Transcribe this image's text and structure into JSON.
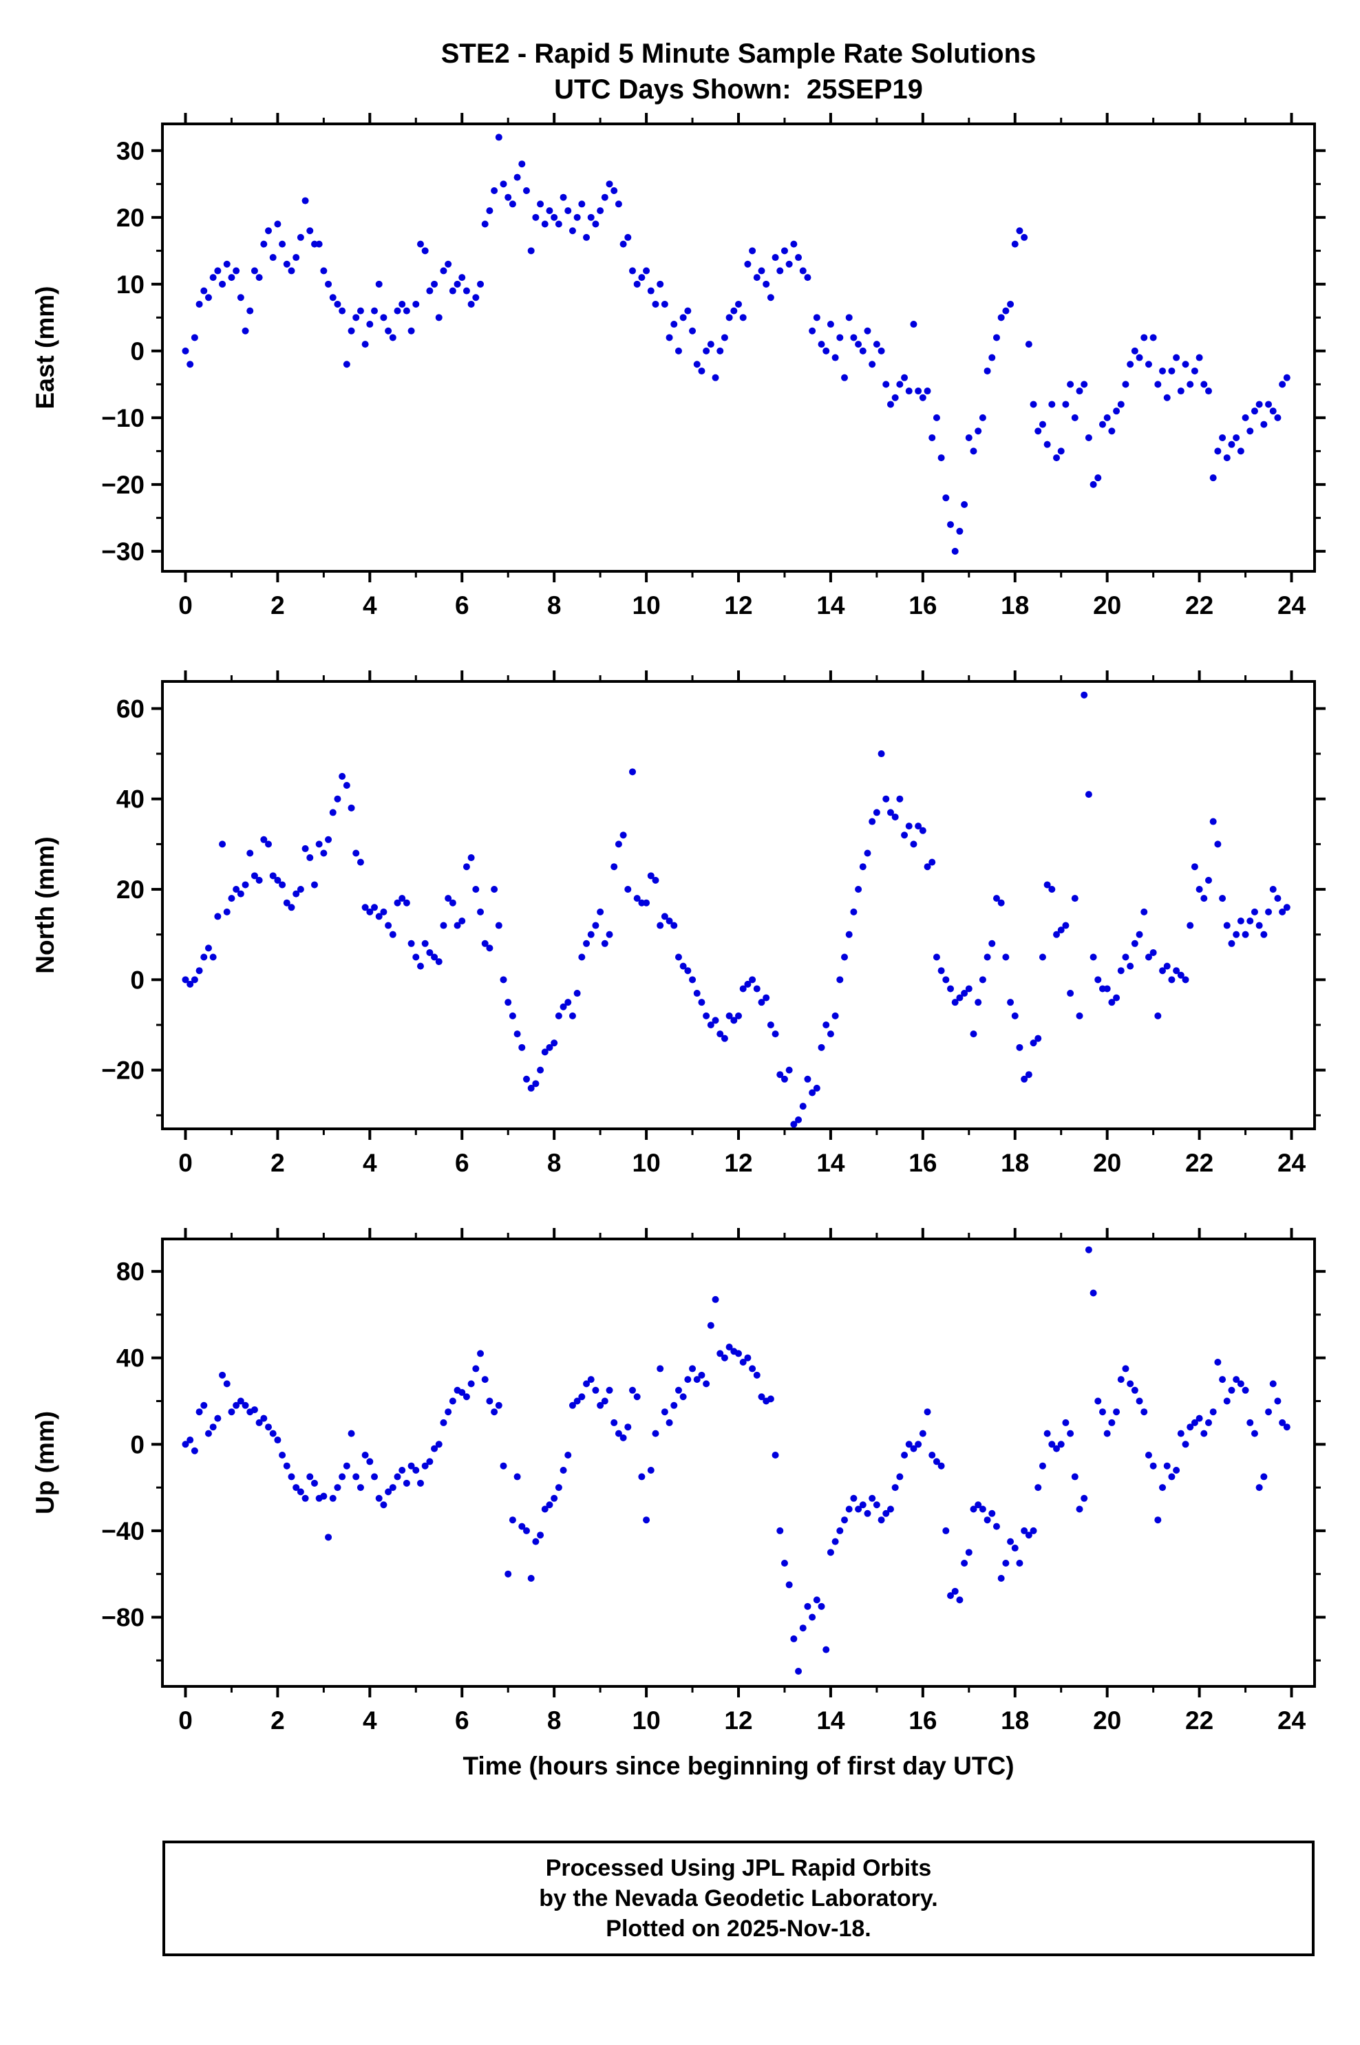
{
  "title_line1": "STE2 - Rapid 5 Minute Sample Rate Solutions",
  "title_line2": "UTC Days Shown:  25SEP19",
  "xlabel": "Time (hours since beginning of first day UTC)",
  "footer": {
    "line1": "Processed Using JPL Rapid Orbits",
    "line2": "by the Nevada Geodetic Laboratory.",
    "line3": "Plotted on 2025-Nov-18."
  },
  "point_color": "#0000dd",
  "chart_data": [
    {
      "type": "scatter",
      "name": "East",
      "ylabel": "East (mm)",
      "x_start": 0,
      "x_step": 0.1,
      "xlim": [
        -0.5,
        24.5
      ],
      "ylim": [
        -33,
        34
      ],
      "xticks": [
        0,
        2,
        4,
        6,
        8,
        10,
        12,
        14,
        16,
        18,
        20,
        22,
        24
      ],
      "yticks": [
        -30,
        -20,
        -10,
        0,
        10,
        20,
        30
      ],
      "x_minor_step": 1,
      "y_minor_step": 5,
      "values": [
        0,
        -2,
        2,
        7,
        9,
        8,
        11,
        12,
        10,
        13,
        11,
        12,
        8,
        3,
        6,
        12,
        11,
        16,
        18,
        14,
        19,
        16,
        13,
        12,
        14,
        17,
        22.5,
        18,
        16,
        16,
        12,
        10,
        8,
        7,
        6,
        -2,
        3,
        5,
        6,
        1,
        4,
        6,
        10,
        5,
        3,
        2,
        6,
        7,
        6,
        3,
        7,
        16,
        15,
        9,
        10,
        5,
        12,
        13,
        9,
        10,
        11,
        9,
        7,
        8,
        10,
        19,
        21,
        24,
        32,
        25,
        23,
        22,
        26,
        28,
        24,
        15,
        20,
        22,
        19,
        21,
        20,
        19,
        23,
        21,
        18,
        20,
        22,
        17,
        20,
        19,
        21,
        23,
        25,
        24,
        22,
        16,
        17,
        12,
        10,
        11,
        12,
        9,
        7,
        10,
        7,
        2,
        4,
        0,
        5,
        6,
        3,
        -2,
        -3,
        0,
        1,
        -4,
        0,
        2,
        5,
        6,
        7,
        5,
        13,
        15,
        11,
        12,
        10,
        8,
        14,
        12,
        15,
        13,
        16,
        14,
        12,
        11,
        3,
        5,
        1,
        0,
        4,
        -1,
        2,
        -4,
        5,
        2,
        1,
        0,
        3,
        -2,
        1,
        0,
        -5,
        -8,
        -7,
        -5,
        -4,
        -6,
        4,
        -6,
        -7,
        -6,
        -13,
        -10,
        -16,
        -22,
        -26,
        -30,
        -27,
        -23,
        -13,
        -15,
        -12,
        -10,
        -3,
        -1,
        2,
        5,
        6,
        7,
        16,
        18,
        17,
        1,
        -8,
        -12,
        -11,
        -14,
        -8,
        -16,
        -15,
        -8,
        -5,
        -10,
        -6,
        -5,
        -13,
        -20,
        -19,
        -11,
        -10,
        -12,
        -9,
        -8,
        -5,
        -2,
        0,
        -1,
        2,
        -2,
        2,
        -5,
        -3,
        -7,
        -3,
        -1,
        -6,
        -2,
        -5,
        -3,
        -1,
        -5,
        -6,
        -19,
        -15,
        -13,
        -16,
        -14,
        -13,
        -15,
        -10,
        -12,
        -9,
        -8,
        -11,
        -8,
        -9,
        -10,
        -5,
        -4
      ]
    },
    {
      "type": "scatter",
      "name": "North",
      "ylabel": "North (mm)",
      "x_start": 0,
      "x_step": 0.1,
      "xlim": [
        -0.5,
        24.5
      ],
      "ylim": [
        -33,
        66
      ],
      "xticks": [
        0,
        2,
        4,
        6,
        8,
        10,
        12,
        14,
        16,
        18,
        20,
        22,
        24
      ],
      "yticks": [
        -20,
        0,
        20,
        40,
        60
      ],
      "x_minor_step": 1,
      "y_minor_step": 10,
      "values": [
        0,
        -1,
        0,
        2,
        5,
        7,
        5,
        14,
        30,
        15,
        18,
        20,
        19,
        21,
        28,
        23,
        22,
        31,
        30,
        23,
        22,
        21,
        17,
        16,
        19,
        20,
        29,
        27,
        21,
        30,
        28,
        31,
        37,
        40,
        45,
        43,
        38,
        28,
        26,
        16,
        15,
        16,
        14,
        15,
        12,
        10,
        17,
        18,
        17,
        8,
        5,
        3,
        8,
        6,
        5,
        4,
        12,
        18,
        17,
        12,
        13,
        25,
        27,
        20,
        15,
        8,
        7,
        20,
        12,
        0,
        -5,
        -8,
        -12,
        -15,
        -22,
        -24,
        -23,
        -20,
        -16,
        -15,
        -14,
        -8,
        -6,
        -5,
        -8,
        -3,
        5,
        8,
        10,
        12,
        15,
        8,
        10,
        25,
        30,
        32,
        20,
        46,
        18,
        17,
        17,
        23,
        22,
        12,
        14,
        13,
        12,
        5,
        3,
        2,
        0,
        -3,
        -5,
        -8,
        -10,
        -9,
        -12,
        -13,
        -8,
        -9,
        -8,
        -2,
        -1,
        0,
        -2,
        -5,
        -4,
        -10,
        -12,
        -21,
        -22,
        -20,
        -32,
        -31,
        -28,
        -22,
        -25,
        -24,
        -15,
        -10,
        -12,
        -8,
        0,
        5,
        10,
        15,
        20,
        25,
        28,
        35,
        37,
        50,
        40,
        37,
        36,
        40,
        32,
        34,
        30,
        34,
        33,
        25,
        26,
        5,
        2,
        0,
        -2,
        -5,
        -4,
        -3,
        -2,
        -12,
        -5,
        0,
        5,
        8,
        18,
        17,
        5,
        -5,
        -8,
        -15,
        -22,
        -21,
        -14,
        -13,
        5,
        21,
        20,
        10,
        11,
        12,
        -3,
        18,
        -8,
        63,
        41,
        5,
        0,
        -2,
        -2,
        -5,
        -4,
        2,
        5,
        3,
        8,
        10,
        15,
        5,
        6,
        -8,
        2,
        3,
        0,
        2,
        1,
        0,
        12,
        25,
        20,
        18,
        22,
        35,
        30,
        18,
        12,
        8,
        10,
        13,
        10,
        13,
        15,
        12,
        10,
        15,
        20,
        18,
        15,
        16
      ]
    },
    {
      "type": "scatter",
      "name": "Up",
      "ylabel": "Up (mm)",
      "x_start": 0,
      "x_step": 0.1,
      "xlim": [
        -0.5,
        24.5
      ],
      "ylim": [
        -112,
        95
      ],
      "xticks": [
        0,
        2,
        4,
        6,
        8,
        10,
        12,
        14,
        16,
        18,
        20,
        22,
        24
      ],
      "yticks": [
        -80,
        -40,
        0,
        40,
        80
      ],
      "x_minor_step": 1,
      "y_minor_step": 20,
      "values": [
        0,
        2,
        -3,
        15,
        18,
        5,
        8,
        12,
        32,
        28,
        15,
        18,
        20,
        18,
        15,
        16,
        10,
        12,
        8,
        5,
        2,
        -5,
        -10,
        -15,
        -20,
        -22,
        -25,
        -15,
        -18,
        -25,
        -24,
        -43,
        -25,
        -20,
        -15,
        -10,
        5,
        -15,
        -20,
        -5,
        -8,
        -15,
        -25,
        -28,
        -22,
        -20,
        -15,
        -12,
        -18,
        -10,
        -12,
        -18,
        -10,
        -8,
        -2,
        0,
        10,
        15,
        20,
        25,
        24,
        22,
        28,
        35,
        42,
        30,
        20,
        15,
        18,
        -10,
        -60,
        -35,
        -15,
        -38,
        -40,
        -62,
        -45,
        -42,
        -30,
        -28,
        -25,
        -20,
        -12,
        -5,
        18,
        20,
        22,
        28,
        30,
        25,
        18,
        20,
        25,
        10,
        5,
        3,
        8,
        25,
        22,
        -15,
        -35,
        -12,
        5,
        35,
        15,
        10,
        18,
        25,
        22,
        30,
        35,
        30,
        32,
        28,
        55,
        67,
        42,
        40,
        45,
        43,
        42,
        38,
        40,
        35,
        32,
        22,
        20,
        21,
        -5,
        -40,
        -55,
        -65,
        -90,
        -105,
        -85,
        -75,
        -80,
        -72,
        -75,
        -95,
        -50,
        -45,
        -40,
        -35,
        -30,
        -25,
        -30,
        -28,
        -32,
        -25,
        -28,
        -35,
        -32,
        -30,
        -20,
        -15,
        -5,
        0,
        -2,
        0,
        5,
        15,
        -5,
        -8,
        -10,
        -40,
        -70,
        -68,
        -72,
        -55,
        -50,
        -30,
        -28,
        -30,
        -35,
        -32,
        -38,
        -62,
        -55,
        -45,
        -48,
        -55,
        -40,
        -42,
        -40,
        -20,
        -10,
        5,
        0,
        -2,
        0,
        10,
        5,
        -15,
        -30,
        -25,
        90,
        70,
        20,
        15,
        5,
        10,
        15,
        30,
        35,
        28,
        25,
        20,
        15,
        -5,
        -10,
        -35,
        -20,
        -10,
        -15,
        -12,
        5,
        0,
        8,
        10,
        12,
        5,
        10,
        15,
        38,
        30,
        20,
        25,
        30,
        28,
        25,
        10,
        5,
        -20,
        -15,
        15,
        28,
        20,
        10,
        8
      ]
    }
  ]
}
